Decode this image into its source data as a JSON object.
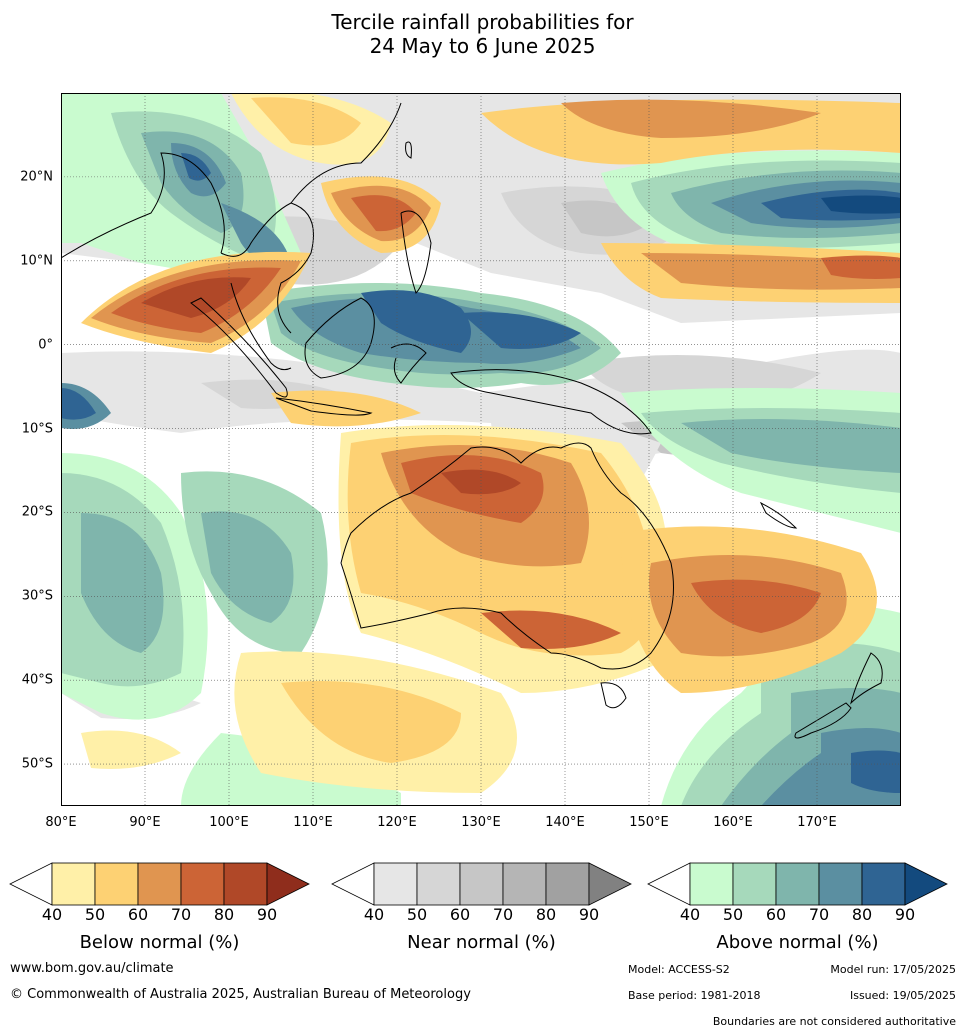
{
  "title": {
    "line1": "Tercile rainfall probabilities for",
    "line2": "24 May to 6 June 2025"
  },
  "map": {
    "lat_labels": [
      "20°N",
      "10°N",
      "0°",
      "10°S",
      "20°S",
      "30°S",
      "40°S",
      "50°S"
    ],
    "lon_labels": [
      "80°E",
      "90°E",
      "100°E",
      "110°E",
      "120°E",
      "130°E",
      "140°E",
      "150°E",
      "160°E",
      "170°E"
    ],
    "lat_range": [
      -55,
      30
    ],
    "lon_range": [
      80,
      180
    ]
  },
  "colorbars": [
    {
      "title": "Below normal (%)",
      "ticks": [
        "40",
        "50",
        "60",
        "70",
        "80",
        "90"
      ],
      "colors": [
        "#ffffff",
        "#fff0a8",
        "#fdd173",
        "#e09550",
        "#cc6436",
        "#b04828",
        "#8f2d1c"
      ]
    },
    {
      "title": "Near normal (%)",
      "ticks": [
        "40",
        "50",
        "60",
        "70",
        "80",
        "90"
      ],
      "colors": [
        "#ffffff",
        "#e6e6e6",
        "#d6d6d6",
        "#c6c6c6",
        "#b5b5b5",
        "#a1a1a1",
        "#818181"
      ]
    },
    {
      "title": "Above normal (%)",
      "ticks": [
        "40",
        "50",
        "60",
        "70",
        "80",
        "90"
      ],
      "colors": [
        "#ffffff",
        "#c9fbcf",
        "#a6d9bb",
        "#7fb5ac",
        "#5b8fa1",
        "#2f6493",
        "#134a7e"
      ]
    }
  ],
  "footer": {
    "website": "www.bom.gov.au/climate",
    "copyright": "© Commonwealth of Australia 2025, Australian Bureau of Meteorology",
    "model": "Model: ACCESS-S2",
    "model_run": "Model run: 17/05/2025",
    "base_period": "Base period: 1981-2018",
    "issued": "Issued: 19/05/2025",
    "disclaimer": "Boundaries are not considered authoritative"
  }
}
